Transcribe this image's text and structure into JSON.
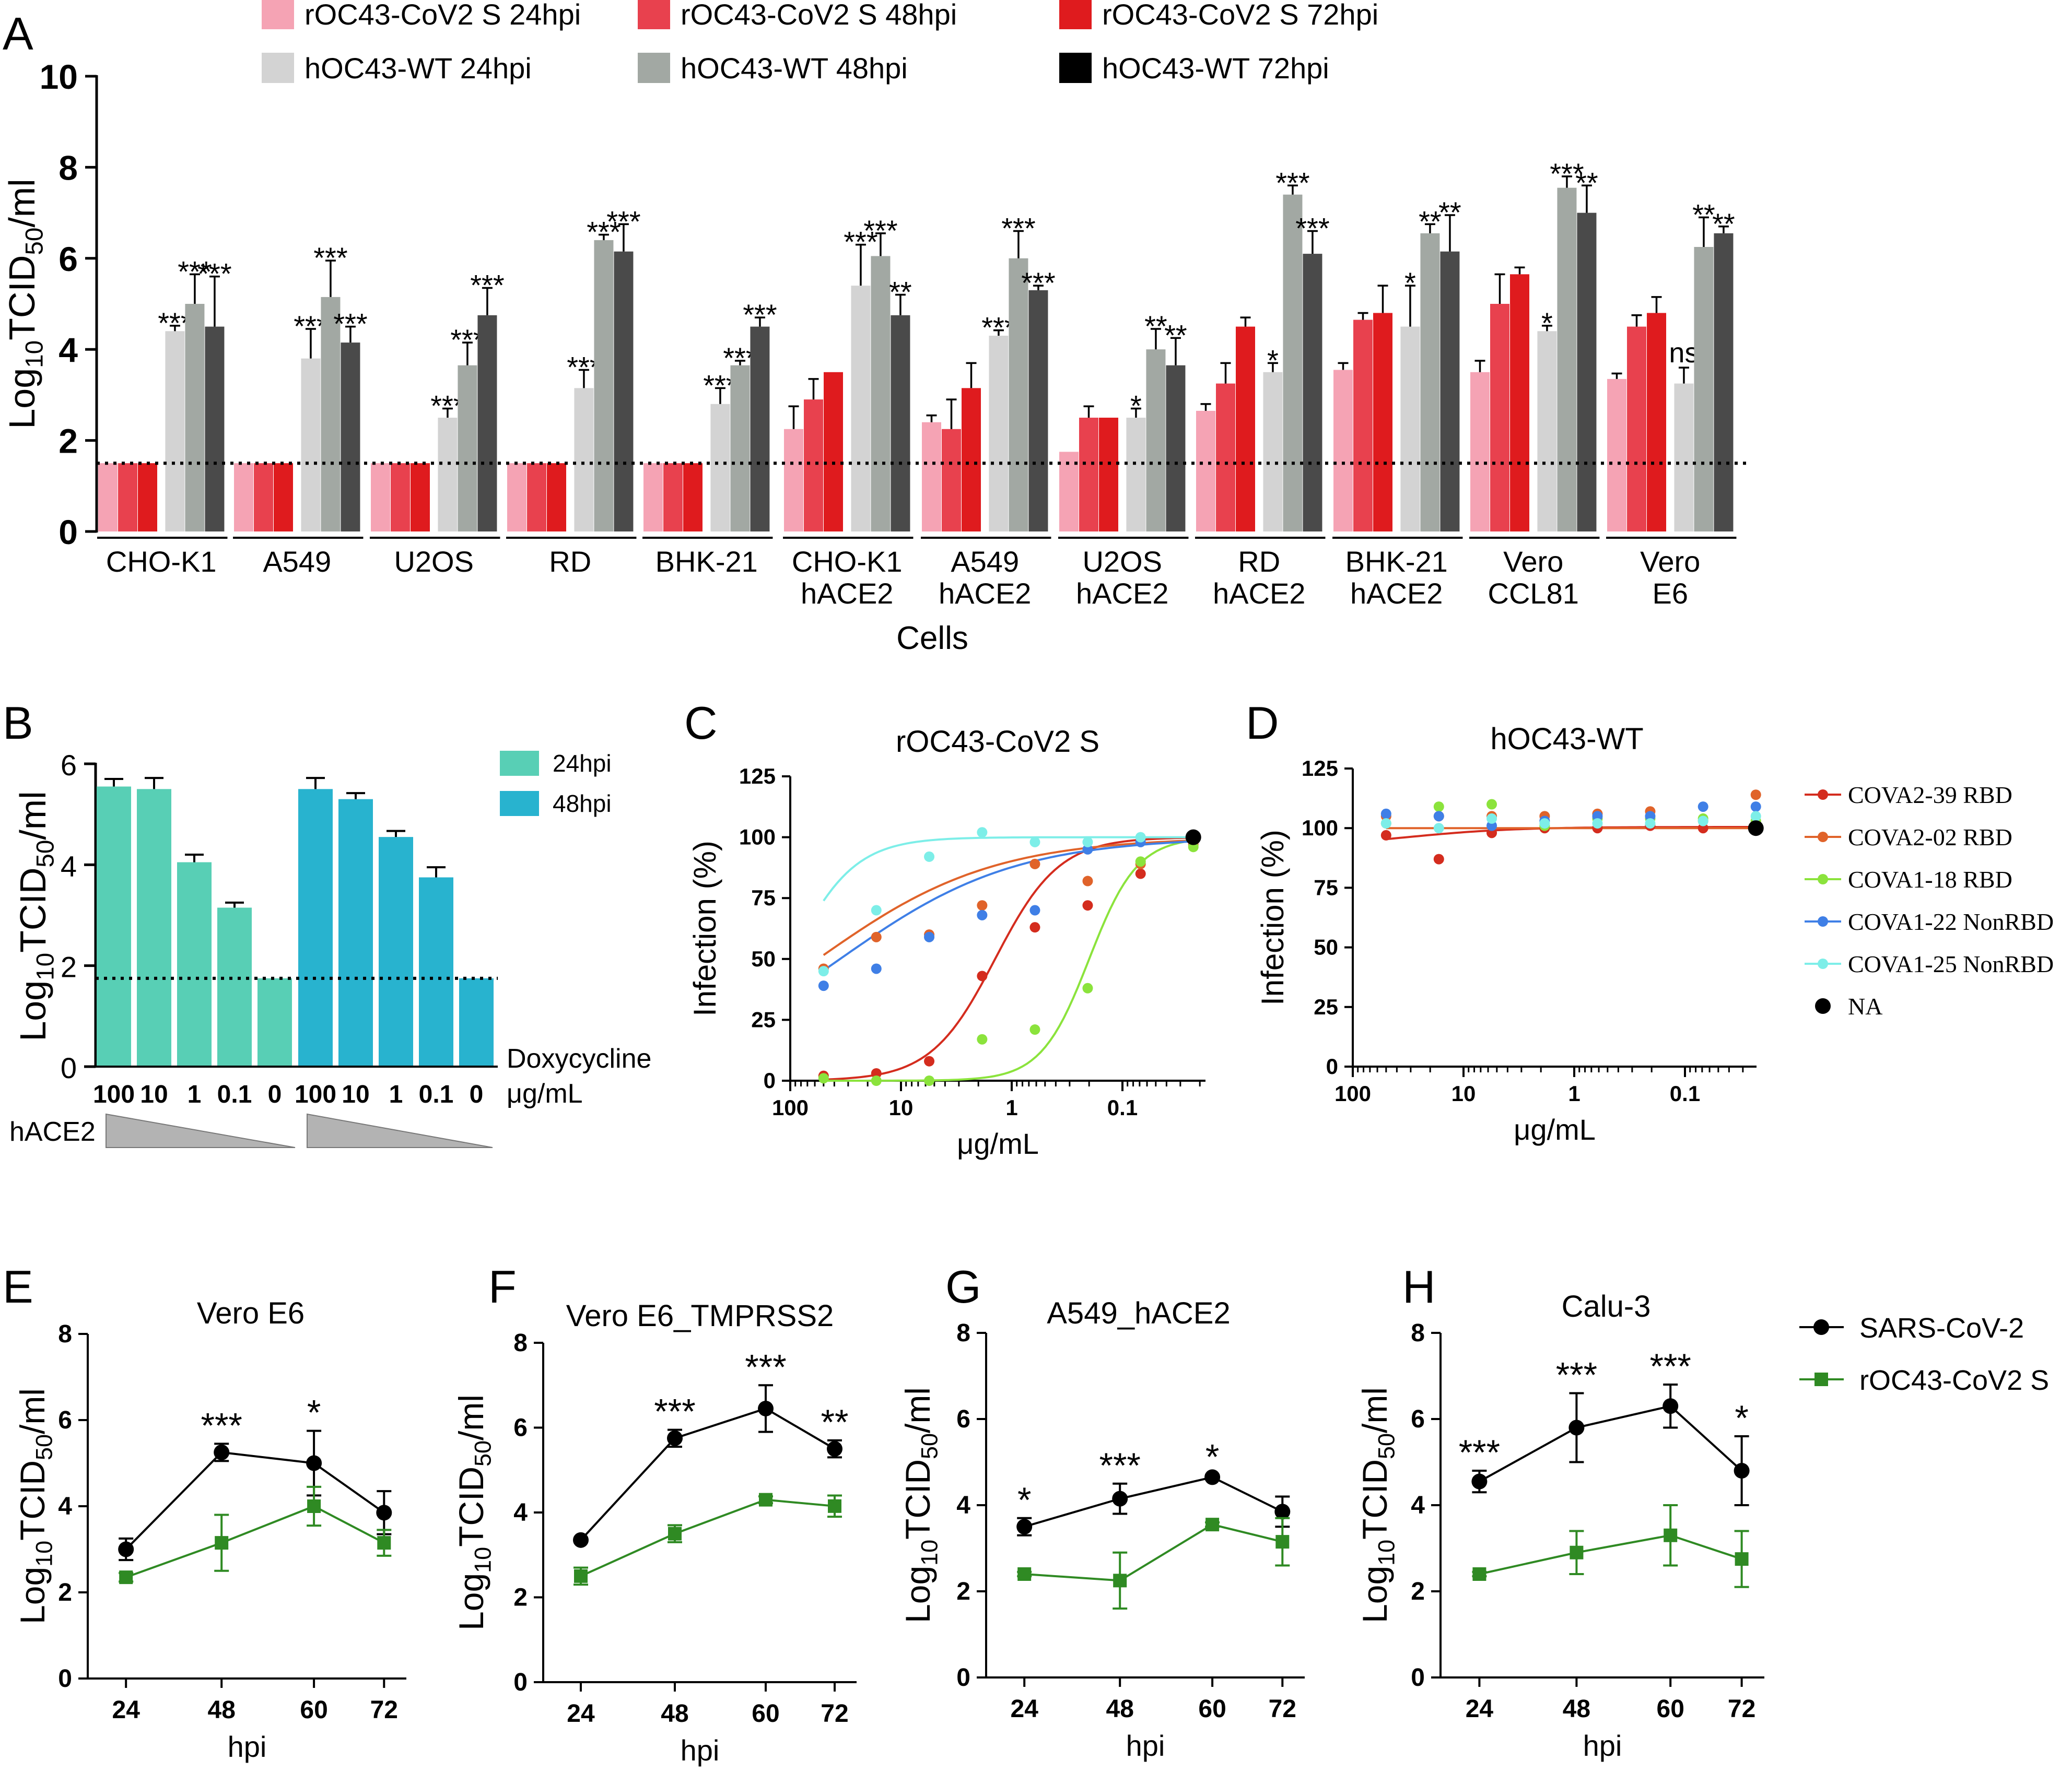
{
  "panel_letters": {
    "A": "A",
    "B": "B",
    "C": "C",
    "D": "D",
    "E": "E",
    "F": "F",
    "G": "G",
    "H": "H"
  },
  "colors": {
    "oc_24": "#f5a3b4",
    "oc_48": "#e8414e",
    "oc_72": "#df1b1e",
    "wt_24": "#d3d3d3",
    "wt_48": "#a2a8a3",
    "wt_72": "#4a4a4a",
    "wt_72_legend": "#000000",
    "b_24": "#58cfb5",
    "b_48": "#28b3cf",
    "cova2_39": "#d42c1e",
    "cova2_02": "#e0632a",
    "cova1_18": "#8be33c",
    "cova1_22": "#3f7fe6",
    "cova1_25": "#7deee8",
    "na": "#000000",
    "sars": "#000000",
    "roc": "#2f8a23"
  },
  "chart_data": [
    {
      "panel": "A",
      "type": "bar",
      "ylabel": "Log10TCID50/ml",
      "xlabel": "Cells",
      "ylim": [
        0,
        10
      ],
      "yticks": [
        "0",
        "2",
        "4",
        "6",
        "8",
        "10"
      ],
      "detection_limit": 1.5,
      "legend": [
        "rOC43-CoV2 S 24hpi",
        "rOC43-CoV2 S 48hpi",
        "rOC43-CoV2 S 72hpi",
        "hOC43-WT 24hpi",
        "hOC43-WT 48hpi",
        "hOC43-WT 72hpi"
      ],
      "categories": [
        [
          "CHO-K1"
        ],
        [
          "A549"
        ],
        [
          "U2OS"
        ],
        [
          "RD"
        ],
        [
          "BHK-21"
        ],
        [
          "CHO-K1",
          "hACE2"
        ],
        [
          "A549",
          "hACE2"
        ],
        [
          "U2OS",
          "hACE2"
        ],
        [
          "RD",
          "hACE2"
        ],
        [
          "BHK-21",
          "hACE2"
        ],
        [
          "Vero",
          "CCL81"
        ],
        [
          "Vero",
          "E6"
        ]
      ],
      "series": [
        {
          "name": "rOC43-CoV2 S 24hpi",
          "values": [
            1.5,
            1.5,
            1.5,
            1.5,
            1.5,
            2.25,
            2.4,
            1.75,
            2.65,
            3.55,
            3.5,
            3.35
          ],
          "errors": [
            0,
            0,
            0,
            0,
            0,
            0.5,
            0.15,
            0,
            0.15,
            0.15,
            0.25,
            0.12
          ]
        },
        {
          "name": "rOC43-CoV2 S 48hpi",
          "values": [
            1.5,
            1.5,
            1.5,
            1.5,
            1.5,
            2.9,
            2.25,
            2.5,
            3.25,
            4.65,
            5.0,
            4.5
          ],
          "errors": [
            0,
            0,
            0,
            0,
            0,
            0.45,
            0.65,
            0.25,
            0.45,
            0.15,
            0.65,
            0.25
          ]
        },
        {
          "name": "rOC43-CoV2 S 72hpi",
          "values": [
            1.5,
            1.5,
            1.5,
            1.5,
            1.5,
            3.5,
            3.15,
            2.5,
            4.5,
            4.8,
            5.65,
            4.8
          ],
          "errors": [
            0,
            0,
            0,
            0,
            0,
            0,
            0.55,
            0,
            0.2,
            0.6,
            0.15,
            0.35
          ]
        },
        {
          "name": "hOC43-WT 24hpi",
          "values": [
            4.4,
            3.8,
            2.5,
            3.15,
            2.8,
            5.4,
            4.3,
            2.5,
            3.5,
            4.5,
            4.4,
            3.25
          ],
          "errors": [
            0.12,
            0.65,
            0.2,
            0.4,
            0.35,
            0.9,
            0.12,
            0.2,
            0.2,
            0.9,
            0.12,
            0.35
          ],
          "sig": [
            "***",
            "***",
            "***",
            "***",
            "***",
            "***",
            "***",
            "*",
            "*",
            "*",
            "*",
            "ns"
          ]
        },
        {
          "name": "hOC43-WT 48hpi",
          "values": [
            5.0,
            5.15,
            3.65,
            6.4,
            3.65,
            6.05,
            6.0,
            4.0,
            7.4,
            6.55,
            7.55,
            6.25
          ],
          "errors": [
            0.65,
            0.8,
            0.5,
            0.12,
            0.1,
            0.5,
            0.6,
            0.45,
            0.2,
            0.2,
            0.25,
            0.65
          ],
          "sig": [
            "***",
            "***",
            "***",
            "***",
            "***",
            "***",
            "***",
            "**",
            "***",
            "**",
            "***",
            "**"
          ]
        },
        {
          "name": "hOC43-WT 72hpi",
          "values": [
            4.5,
            4.15,
            4.75,
            6.15,
            4.5,
            4.75,
            5.3,
            3.65,
            6.1,
            6.15,
            7.0,
            6.55
          ],
          "errors": [
            1.1,
            0.35,
            0.6,
            0.6,
            0.2,
            0.45,
            0.1,
            0.6,
            0.5,
            0.8,
            0.6,
            0.15
          ],
          "sig": [
            "***",
            "***",
            "***",
            "***",
            "***",
            "**",
            "***",
            "**",
            "***",
            "**",
            "**",
            "**"
          ]
        }
      ]
    },
    {
      "panel": "B",
      "type": "bar",
      "ylabel": "Log10TCID50/ml",
      "ylim": [
        0,
        6
      ],
      "yticks": [
        "0",
        "2",
        "4",
        "6"
      ],
      "detection_limit": 1.75,
      "categories": [
        "100",
        "10",
        "1",
        "0.1",
        "0"
      ],
      "xlabel_lines": [
        "Doxycycline",
        "μg/mL"
      ],
      "wedge_label": "hACE2",
      "legend": [
        "24hpi",
        "48hpi"
      ],
      "series": [
        {
          "name": "24hpi",
          "values": [
            5.55,
            5.5,
            4.05,
            3.15,
            1.75
          ],
          "errors": [
            0.15,
            0.22,
            0.15,
            0.1,
            0
          ]
        },
        {
          "name": "48hpi",
          "values": [
            5.5,
            5.3,
            4.55,
            3.75,
            1.75
          ],
          "errors": [
            0.22,
            0.12,
            0.12,
            0.2,
            0
          ]
        }
      ]
    },
    {
      "panel": "C",
      "type": "scatter",
      "title": "rOC43-CoV2 S",
      "ylabel": "Infection (%)",
      "xlabel": "μg/mL",
      "x_scale": "log-reversed",
      "xticks": [
        "100",
        "10",
        "1",
        "0.1"
      ],
      "yticks": [
        "0",
        "25",
        "50",
        "75",
        "100",
        "125"
      ],
      "ylim": [
        0,
        125
      ],
      "series": [
        {
          "name": "COVA2-39 RBD",
          "x": [
            50,
            16.7,
            5.56,
            1.85,
            0.617,
            0.206,
            0.0686,
            0.0229
          ],
          "y": [
            2,
            3,
            8,
            43,
            63,
            72,
            85,
            98
          ]
        },
        {
          "name": "COVA2-02 RBD",
          "x": [
            50,
            16.7,
            5.56,
            1.85,
            0.617,
            0.206,
            0.0686,
            0.0229
          ],
          "y": [
            46,
            59,
            60,
            72,
            89,
            82,
            89,
            97
          ]
        },
        {
          "name": "COVA1-18 RBD",
          "x": [
            50,
            16.7,
            5.56,
            1.85,
            0.617,
            0.206,
            0.0686,
            0.0229
          ],
          "y": [
            1,
            0,
            0,
            17,
            21,
            38,
            90,
            96
          ]
        },
        {
          "name": "COVA1-22 NonRBD",
          "x": [
            50,
            16.7,
            5.56,
            1.85,
            0.617,
            0.206,
            0.0686,
            0.0229
          ],
          "y": [
            39,
            46,
            59,
            68,
            70,
            95,
            98,
            99
          ]
        },
        {
          "name": "COVA1-25 NonRBD",
          "x": [
            50,
            16.7,
            5.56,
            1.85,
            0.617,
            0.206,
            0.0686,
            0.0229
          ],
          "y": [
            45,
            70,
            92,
            102,
            98,
            98,
            100,
            100
          ]
        },
        {
          "name": "NA",
          "x": [
            0.0229
          ],
          "y": [
            100
          ]
        }
      ]
    },
    {
      "panel": "D",
      "type": "scatter",
      "title": "hOC43-WT",
      "ylabel": "Infection (%)",
      "xlabel": "μg/mL",
      "x_scale": "log-reversed",
      "xticks": [
        "100",
        "10",
        "1",
        "0.1"
      ],
      "yticks": [
        "0",
        "25",
        "50",
        "75",
        "100",
        "125"
      ],
      "ylim": [
        0,
        125
      ],
      "legend": [
        "COVA2-39 RBD",
        "COVA2-02 RBD",
        "COVA1-18 RBD",
        "COVA1-22 NonRBD",
        "COVA1-25 NonRBD",
        "NA"
      ],
      "series": [
        {
          "name": "COVA2-39 RBD",
          "x": [
            50,
            16.7,
            5.56,
            1.85,
            0.617,
            0.206,
            0.0686,
            0.0229
          ],
          "y": [
            97,
            87,
            98,
            100,
            100,
            101,
            100,
            100
          ]
        },
        {
          "name": "COVA2-02 RBD",
          "x": [
            50,
            16.7,
            5.56,
            1.85,
            0.617,
            0.206,
            0.0686,
            0.0229
          ],
          "y": [
            105,
            105,
            105,
            105,
            106,
            107,
            103,
            114
          ]
        },
        {
          "name": "COVA1-18 RBD",
          "x": [
            50,
            16.7,
            5.56,
            1.85,
            0.617,
            0.206,
            0.0686,
            0.0229
          ],
          "y": [
            102,
            109,
            110,
            101,
            104,
            104,
            104,
            103
          ]
        },
        {
          "name": "COVA1-22 NonRBD",
          "x": [
            50,
            16.7,
            5.56,
            1.85,
            0.617,
            0.206,
            0.0686,
            0.0229
          ],
          "y": [
            106,
            105,
            101,
            103,
            105,
            105,
            109,
            109
          ]
        },
        {
          "name": "COVA1-25 NonRBD",
          "x": [
            50,
            16.7,
            5.56,
            1.85,
            0.617,
            0.206,
            0.0686,
            0.0229
          ],
          "y": [
            102,
            100,
            104,
            102,
            102,
            102,
            103,
            105
          ]
        },
        {
          "name": "NA",
          "x": [
            0.0229
          ],
          "y": [
            100
          ]
        }
      ]
    },
    {
      "panel": "E",
      "type": "line",
      "title": "Vero E6",
      "xlabel": "hpi",
      "ylabel": "Log10TCID50/ml",
      "categories": [
        "24",
        "48",
        "60",
        "72"
      ],
      "ylim": [
        0,
        8
      ],
      "yticks": [
        "0",
        "2",
        "4",
        "6",
        "8"
      ],
      "series": [
        {
          "name": "SARS-CoV-2",
          "values": [
            3.0,
            5.25,
            5.0,
            3.85
          ],
          "errors": [
            0.25,
            0.2,
            0.75,
            0.5
          ]
        },
        {
          "name": "rOC43-CoV2 S",
          "values": [
            2.35,
            3.15,
            4.0,
            3.15
          ],
          "errors": [
            0.1,
            0.65,
            0.45,
            0.3
          ]
        }
      ],
      "sig": [
        "",
        "***",
        "*",
        ""
      ]
    },
    {
      "panel": "F",
      "type": "line",
      "title": "Vero E6_TMPRSS2",
      "xlabel": "hpi",
      "ylabel": "Log10TCID50/ml",
      "categories": [
        "24",
        "48",
        "60",
        "72"
      ],
      "ylim": [
        0,
        8
      ],
      "yticks": [
        "0",
        "2",
        "4",
        "6",
        "8"
      ],
      "series": [
        {
          "name": "SARS-CoV-2",
          "values": [
            3.35,
            5.75,
            6.45,
            5.5
          ],
          "errors": [
            0.05,
            0.2,
            0.55,
            0.2
          ]
        },
        {
          "name": "rOC43-CoV2 S",
          "values": [
            2.5,
            3.5,
            4.3,
            4.15
          ],
          "errors": [
            0.2,
            0.2,
            0.08,
            0.25
          ]
        }
      ],
      "sig": [
        "",
        "***",
        "***",
        "**"
      ]
    },
    {
      "panel": "G",
      "type": "line",
      "title": "A549_hACE2",
      "xlabel": "hpi",
      "ylabel": "Log10TCID50/ml",
      "categories": [
        "24",
        "48",
        "60",
        "72"
      ],
      "ylim": [
        0,
        8
      ],
      "yticks": [
        "0",
        "2",
        "4",
        "6",
        "8"
      ],
      "series": [
        {
          "name": "SARS-CoV-2",
          "values": [
            3.5,
            4.15,
            4.65,
            3.85
          ],
          "errors": [
            0.2,
            0.35,
            0.05,
            0.35
          ]
        },
        {
          "name": "rOC43-CoV2 S",
          "values": [
            2.4,
            2.25,
            3.55,
            3.15
          ],
          "errors": [
            0.05,
            0.65,
            0.05,
            0.55
          ]
        }
      ],
      "sig": [
        "*",
        "***",
        "*",
        ""
      ]
    },
    {
      "panel": "H",
      "type": "line",
      "title": "Calu-3",
      "xlabel": "hpi",
      "ylabel": "Log10TCID50/ml",
      "categories": [
        "24",
        "48",
        "60",
        "72"
      ],
      "ylim": [
        0,
        8
      ],
      "yticks": [
        "0",
        "2",
        "4",
        "6",
        "8"
      ],
      "legend": [
        "SARS-CoV-2",
        "rOC43-CoV2 S"
      ],
      "series": [
        {
          "name": "SARS-CoV-2",
          "values": [
            4.55,
            5.8,
            6.3,
            4.8
          ],
          "errors": [
            0.25,
            0.8,
            0.5,
            0.8
          ]
        },
        {
          "name": "rOC43-CoV2 S",
          "values": [
            2.4,
            2.9,
            3.3,
            2.75
          ],
          "errors": [
            0.05,
            0.5,
            0.7,
            0.65
          ]
        }
      ],
      "sig": [
        "***",
        "***",
        "***",
        "*"
      ]
    }
  ]
}
